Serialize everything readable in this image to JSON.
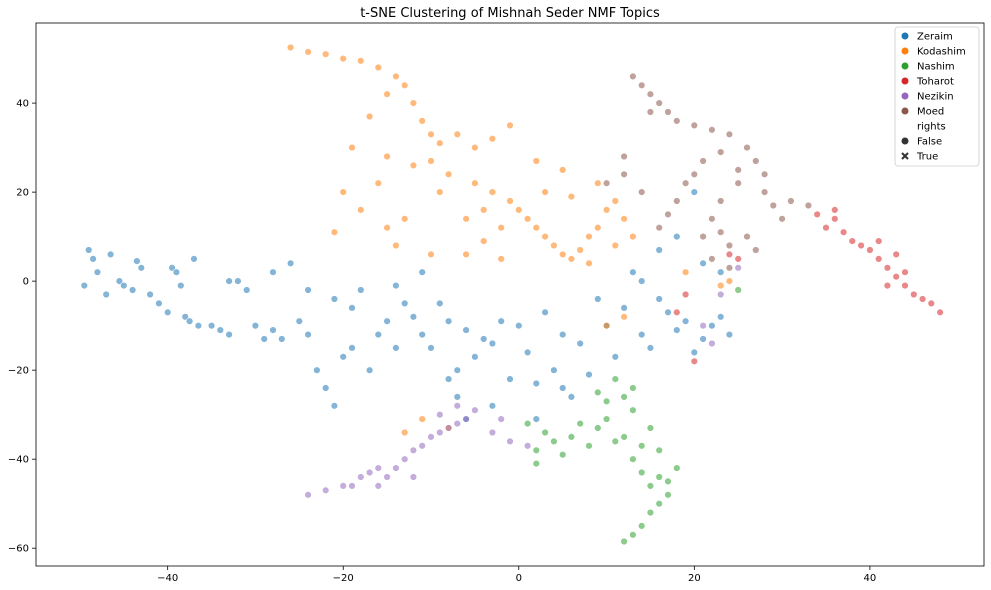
{
  "chart_data": {
    "type": "scatter",
    "title": "t-SNE Clustering of Mishnah Seder NMF Topics",
    "xlabel": "",
    "ylabel": "",
    "xlim": [
      -55,
      53
    ],
    "ylim": [
      -64,
      58
    ],
    "x_ticks": [
      -40,
      -20,
      0,
      20,
      40
    ],
    "y_ticks": [
      -60,
      -40,
      -20,
      0,
      20,
      40
    ],
    "grid": false,
    "legend_position": "top-right",
    "legend": {
      "hue_entries": [
        {
          "name": "Zeraim",
          "color": "#1f77b4"
        },
        {
          "name": "Kodashim",
          "color": "#ff7f0e"
        },
        {
          "name": "Nashim",
          "color": "#2ca02c"
        },
        {
          "name": "Toharot",
          "color": "#d62728"
        },
        {
          "name": "Nezikin",
          "color": "#9467bd"
        },
        {
          "name": "Moed",
          "color": "#8c564b"
        }
      ],
      "style_title": "rights",
      "style_entries": [
        {
          "name": "False",
          "marker": "circle"
        },
        {
          "name": "True",
          "marker": "x"
        }
      ]
    },
    "series": [
      {
        "name": "Zeraim",
        "color": "#1f77b4",
        "points": [
          [
            -49.5,
            -1
          ],
          [
            -49,
            7
          ],
          [
            -48.5,
            5
          ],
          [
            -48,
            2
          ],
          [
            -47,
            -3
          ],
          [
            -46.5,
            6
          ],
          [
            -45.5,
            0
          ],
          [
            -45,
            -1
          ],
          [
            -44,
            -2
          ],
          [
            -43.5,
            4.5
          ],
          [
            -43,
            3
          ],
          [
            -42,
            -3
          ],
          [
            -41,
            -5
          ],
          [
            -40,
            -7
          ],
          [
            -39.5,
            3
          ],
          [
            -39,
            2
          ],
          [
            -38.5,
            -1
          ],
          [
            -38,
            -8
          ],
          [
            -37.5,
            -9
          ],
          [
            -37,
            5
          ],
          [
            -36.5,
            -10
          ],
          [
            -35,
            -10
          ],
          [
            -34,
            -11
          ],
          [
            -33,
            -12
          ],
          [
            -32,
            0
          ],
          [
            -31,
            -2
          ],
          [
            -30,
            -10
          ],
          [
            -29,
            -13
          ],
          [
            -28,
            -11
          ],
          [
            -27,
            -13
          ],
          [
            -26,
            4
          ],
          [
            -25,
            -9
          ],
          [
            -24,
            -12
          ],
          [
            -23,
            -20
          ],
          [
            -22,
            -24
          ],
          [
            -21,
            -28
          ],
          [
            -20,
            -17
          ],
          [
            -19,
            -15
          ],
          [
            -18,
            -2
          ],
          [
            -17,
            -20
          ],
          [
            -16,
            -12
          ],
          [
            -15,
            -9
          ],
          [
            -14,
            -15
          ],
          [
            -13,
            -5
          ],
          [
            -12,
            -8
          ],
          [
            -11,
            -12
          ],
          [
            -10,
            -15
          ],
          [
            -9,
            -5
          ],
          [
            -8,
            -9
          ],
          [
            -7,
            -20
          ],
          [
            -6,
            -11
          ],
          [
            -5,
            -17
          ],
          [
            -4,
            -13
          ],
          [
            -3,
            -14
          ],
          [
            -2,
            -9
          ],
          [
            -1,
            -22
          ],
          [
            0,
            -10
          ],
          [
            1,
            -16
          ],
          [
            2,
            -23
          ],
          [
            3,
            -7
          ],
          [
            4,
            -20
          ],
          [
            5,
            -12
          ],
          [
            6,
            -26
          ],
          [
            7,
            -14
          ],
          [
            8,
            -21
          ],
          [
            9,
            -4
          ],
          [
            10,
            -10
          ],
          [
            11,
            -17
          ],
          [
            12,
            -6
          ],
          [
            13,
            2
          ],
          [
            14,
            -12
          ],
          [
            15,
            -15
          ],
          [
            16,
            -4
          ],
          [
            17,
            -7
          ],
          [
            18,
            -11
          ],
          [
            19,
            -9
          ],
          [
            20,
            -16
          ],
          [
            21,
            -13
          ],
          [
            22,
            -10
          ],
          [
            23,
            -8
          ],
          [
            24,
            -12
          ],
          [
            18,
            10
          ],
          [
            20,
            20
          ],
          [
            16,
            7
          ],
          [
            14,
            0
          ],
          [
            21,
            4
          ],
          [
            23,
            2
          ],
          [
            -11,
            2
          ],
          [
            -14,
            -1
          ],
          [
            -21,
            -4
          ],
          [
            -7,
            -26
          ],
          [
            -6,
            -31
          ],
          [
            -8,
            -22
          ],
          [
            -3,
            -28
          ],
          [
            2,
            -31
          ],
          [
            5,
            -24
          ],
          [
            -33,
            0
          ],
          [
            -28,
            2
          ],
          [
            -19,
            -6
          ],
          [
            -24,
            -2
          ]
        ]
      },
      {
        "name": "Kodashim",
        "color": "#ff7f0e",
        "points": [
          [
            -26,
            52.5
          ],
          [
            -24,
            51.5
          ],
          [
            -22,
            51
          ],
          [
            -20,
            50
          ],
          [
            -18,
            49.5
          ],
          [
            -16,
            48
          ],
          [
            -14,
            46
          ],
          [
            -13,
            44
          ],
          [
            -12,
            40
          ],
          [
            -15,
            42
          ],
          [
            -17,
            37
          ],
          [
            -11,
            36
          ],
          [
            -10,
            33
          ],
          [
            -9,
            31
          ],
          [
            -7,
            33
          ],
          [
            -5,
            30
          ],
          [
            -3,
            32
          ],
          [
            -1,
            35
          ],
          [
            -19,
            30
          ],
          [
            -15,
            28
          ],
          [
            -12,
            26
          ],
          [
            -10,
            27
          ],
          [
            -8,
            24
          ],
          [
            -5,
            22
          ],
          [
            -3,
            20
          ],
          [
            -1,
            18
          ],
          [
            0,
            16
          ],
          [
            1,
            14
          ],
          [
            2,
            12
          ],
          [
            3,
            10
          ],
          [
            4,
            8
          ],
          [
            5,
            6
          ],
          [
            6,
            5
          ],
          [
            7,
            7
          ],
          [
            8,
            10
          ],
          [
            9,
            12
          ],
          [
            10,
            16
          ],
          [
            11,
            18
          ],
          [
            -6,
            14
          ],
          [
            -4,
            16
          ],
          [
            -2,
            12
          ],
          [
            -20,
            20
          ],
          [
            -18,
            16
          ],
          [
            -15,
            12
          ],
          [
            -13,
            14
          ],
          [
            -16,
            22
          ],
          [
            -21,
            11
          ],
          [
            -9,
            20
          ],
          [
            -14,
            8
          ],
          [
            -10,
            6
          ],
          [
            3,
            20
          ],
          [
            6,
            19
          ],
          [
            9,
            22
          ],
          [
            12,
            14
          ],
          [
            2,
            27
          ],
          [
            5,
            25
          ],
          [
            -6,
            6
          ],
          [
            -4,
            9
          ],
          [
            -2,
            5
          ],
          [
            8,
            4
          ],
          [
            11,
            8
          ],
          [
            13,
            10
          ],
          [
            19,
            2
          ],
          [
            23,
            -1
          ],
          [
            24,
            0
          ],
          [
            10,
            -10
          ],
          [
            12,
            -8
          ],
          [
            -13,
            -34
          ],
          [
            -8,
            -33
          ],
          [
            -11,
            -31
          ]
        ]
      },
      {
        "name": "Nashim",
        "color": "#2ca02c",
        "points": [
          [
            9,
            -25
          ],
          [
            11,
            -22
          ],
          [
            12,
            -26
          ],
          [
            13,
            -29
          ],
          [
            10,
            -31
          ],
          [
            12,
            -35
          ],
          [
            11,
            -36
          ],
          [
            9,
            -33
          ],
          [
            8,
            -37
          ],
          [
            14,
            -37
          ],
          [
            13,
            -40
          ],
          [
            15,
            -33
          ],
          [
            16,
            -38
          ],
          [
            14,
            -43
          ],
          [
            15,
            -46
          ],
          [
            16,
            -44
          ],
          [
            17,
            -48
          ],
          [
            15,
            -52
          ],
          [
            14,
            -55
          ],
          [
            13,
            -57
          ],
          [
            12,
            -58.5
          ],
          [
            16,
            -50
          ],
          [
            17,
            -45
          ],
          [
            18,
            -42
          ],
          [
            7,
            -32
          ],
          [
            6,
            -35
          ],
          [
            4,
            -36
          ],
          [
            5,
            -39
          ],
          [
            2,
            -38
          ],
          [
            3,
            -34
          ],
          [
            1,
            -32
          ],
          [
            2,
            -41
          ],
          [
            10,
            -27
          ],
          [
            13,
            -24
          ],
          [
            25,
            -2
          ]
        ]
      },
      {
        "name": "Toharot",
        "color": "#d62728",
        "points": [
          [
            34,
            15
          ],
          [
            35,
            12
          ],
          [
            36,
            14
          ],
          [
            37,
            11
          ],
          [
            38,
            9
          ],
          [
            39,
            8
          ],
          [
            40,
            7
          ],
          [
            41,
            5
          ],
          [
            42,
            3
          ],
          [
            43,
            1
          ],
          [
            44,
            -1
          ],
          [
            45,
            -3
          ],
          [
            46,
            -4
          ],
          [
            47,
            -5
          ],
          [
            48,
            -7
          ],
          [
            43,
            6
          ],
          [
            41,
            9
          ],
          [
            36,
            16
          ],
          [
            44,
            2
          ],
          [
            42,
            -1
          ],
          [
            24,
            6
          ],
          [
            25,
            5
          ],
          [
            18,
            -7
          ],
          [
            20,
            -18
          ],
          [
            19,
            -3
          ]
        ]
      },
      {
        "name": "Nezikin",
        "color": "#9467bd",
        "points": [
          [
            -24,
            -48
          ],
          [
            -22,
            -47
          ],
          [
            -20,
            -46
          ],
          [
            -18,
            -44
          ],
          [
            -17,
            -43
          ],
          [
            -16,
            -42
          ],
          [
            -14,
            -42
          ],
          [
            -13,
            -40
          ],
          [
            -12,
            -38
          ],
          [
            -11,
            -37
          ],
          [
            -10,
            -35
          ],
          [
            -9,
            -34
          ],
          [
            -8,
            -33
          ],
          [
            -7,
            -32
          ],
          [
            -6,
            -31
          ],
          [
            -5,
            -29
          ],
          [
            -15,
            -44
          ],
          [
            -19,
            -46
          ],
          [
            -9,
            -30
          ],
          [
            -7,
            -28
          ],
          [
            -3,
            -34
          ],
          [
            -1,
            -36
          ],
          [
            1,
            -37
          ],
          [
            -2,
            -31
          ],
          [
            25,
            3
          ],
          [
            23,
            -3
          ],
          [
            21,
            -10
          ],
          [
            22,
            -14
          ],
          [
            -12,
            -44
          ],
          [
            -16,
            -46
          ]
        ]
      },
      {
        "name": "Moed",
        "color": "#8c564b",
        "points": [
          [
            13,
            46
          ],
          [
            14,
            44
          ],
          [
            15,
            42
          ],
          [
            16,
            40
          ],
          [
            17,
            38
          ],
          [
            18,
            36
          ],
          [
            20,
            35
          ],
          [
            22,
            34
          ],
          [
            24,
            33
          ],
          [
            26,
            30
          ],
          [
            27,
            27
          ],
          [
            28,
            24
          ],
          [
            28,
            20
          ],
          [
            29,
            17
          ],
          [
            30,
            14
          ],
          [
            31,
            18
          ],
          [
            33,
            17
          ],
          [
            25,
            22
          ],
          [
            23,
            18
          ],
          [
            22,
            14
          ],
          [
            23,
            11
          ],
          [
            24,
            8
          ],
          [
            22,
            5
          ],
          [
            21,
            10
          ],
          [
            20,
            24
          ],
          [
            19,
            22
          ],
          [
            18,
            18
          ],
          [
            17,
            15
          ],
          [
            16,
            12
          ],
          [
            14,
            20
          ],
          [
            12,
            24
          ],
          [
            10,
            22
          ],
          [
            12,
            28
          ],
          [
            26,
            10
          ],
          [
            27,
            7
          ],
          [
            24,
            3
          ],
          [
            25,
            25
          ],
          [
            21,
            27
          ],
          [
            23,
            29
          ],
          [
            15,
            38
          ]
        ]
      }
    ]
  }
}
